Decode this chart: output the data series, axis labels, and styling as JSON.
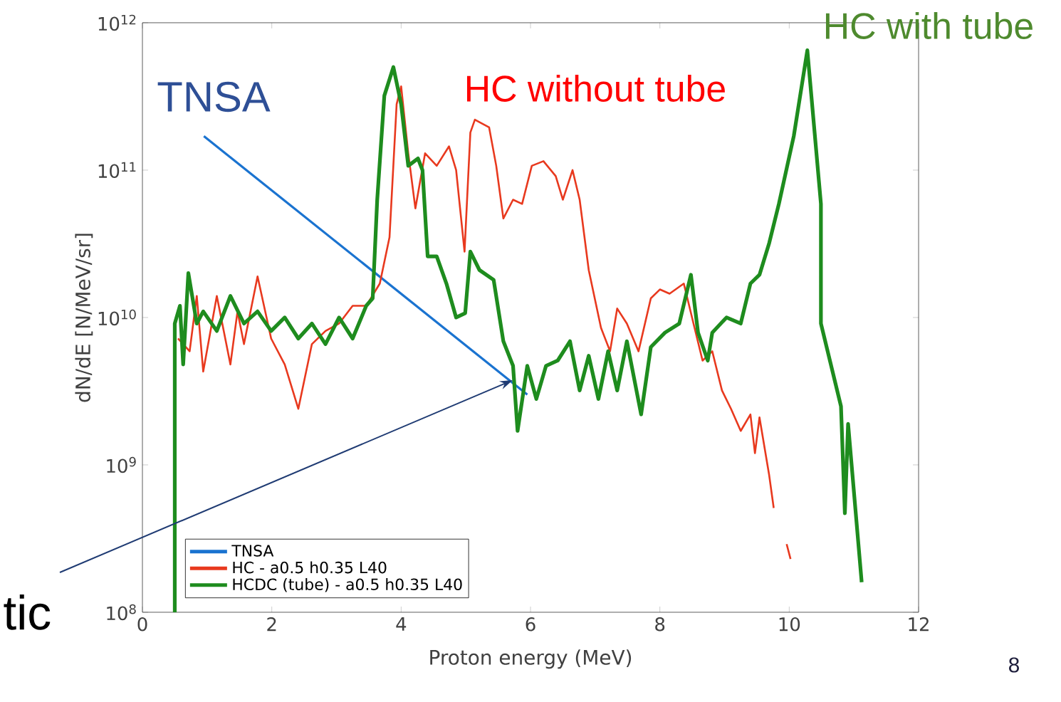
{
  "chart_data": {
    "type": "line",
    "xlabel": "Proton energy (MeV)",
    "ylabel": "dN/dE [N/MeV/sr]",
    "xlim": [
      0,
      12
    ],
    "xticks": [
      0,
      2,
      4,
      6,
      8,
      10,
      12
    ],
    "ylim": [
      100000000.0,
      1000000000000.0
    ],
    "yticks": [
      {
        "value": 100000000.0,
        "label": "10$^{8}$"
      },
      {
        "value": 1000000000.0,
        "label": "10$^{9}$"
      },
      {
        "value": 10000000000.0,
        "label": "10$^{10}$"
      },
      {
        "value": 100000000000.0,
        "label": "10$^{11}$"
      },
      {
        "value": 1000000000000.0,
        "label": "10$^{12}$"
      }
    ],
    "log": "y",
    "grid": false,
    "legend": "bottom left",
    "series": [
      {
        "name": "TNSA",
        "color": "#1a73d0",
        "x": [
          0.95,
          5.95
        ],
        "values": [
          170000000000.0,
          3000000000.0
        ]
      },
      {
        "name": "HC - a0.5 h0.35 L40",
        "color": "#e8391e",
        "x": [
          0.55,
          0.73,
          0.84,
          0.94,
          1.15,
          1.36,
          1.47,
          1.57,
          1.78,
          1.99,
          2.2,
          2.41,
          2.62,
          2.83,
          3.04,
          3.25,
          3.46,
          3.67,
          3.82,
          3.93,
          4.0,
          4.11,
          4.22,
          4.37,
          4.55,
          4.74,
          4.85,
          4.98,
          5.07,
          5.14,
          5.36,
          5.47,
          5.58,
          5.73,
          5.87,
          6.02,
          6.2,
          6.39,
          6.5,
          6.65,
          6.76,
          6.9,
          7.09,
          7.23,
          7.34,
          7.49,
          7.67,
          7.86,
          8.0,
          8.15,
          8.37,
          8.52,
          8.66,
          8.81,
          8.96,
          9.1,
          9.25,
          9.4,
          9.47,
          9.54,
          9.69,
          9.76,
          9.9,
          9.96,
          10.02
        ],
        "values": [
          7200000000.0,
          5900000000.0,
          14000000000.0,
          4300000000.0,
          14000000000.0,
          4800000000.0,
          11000000000.0,
          6600000000.0,
          19000000000.0,
          7200000000.0,
          4800000000.0,
          2400000000.0,
          6600000000.0,
          8100000000.0,
          9100000000.0,
          12000000000.0,
          12000000000.0,
          17000000000.0,
          35000000000.0,
          280000000000.0,
          370000000000.0,
          130000000000.0,
          55000000000.0,
          130000000000.0,
          107000000000.0,
          145000000000.0,
          100000000000.0,
          28000000000.0,
          180000000000.0,
          220000000000.0,
          195000000000.0,
          107000000000.0,
          47000000000.0,
          63000000000.0,
          59000000000.0,
          107000000000.0,
          115000000000.0,
          91000000000.0,
          63000000000.0,
          100000000000.0,
          63000000000.0,
          21000000000.0,
          8500000000.0,
          5900000000.0,
          11500000000.0,
          9100000000.0,
          5900000000.0,
          13500000000.0,
          15500000000.0,
          14500000000.0,
          17000000000.0,
          9100000000.0,
          5100000000.0,
          5900000000.0,
          3200000000.0,
          2400000000.0,
          1700000000.0,
          2200000000.0,
          1200000000.0,
          2100000000.0,
          850000000.0,
          510000000.0,
          null,
          290000000.0,
          230000000.0
        ]
      },
      {
        "name": "HCDC (tube) - a0.5 h0.35 L40",
        "color": "#1e8c1e",
        "x": [
          0.5,
          0.5,
          0.58,
          0.63,
          0.71,
          0.84,
          0.94,
          1.15,
          1.36,
          1.57,
          1.78,
          1.99,
          2.2,
          2.41,
          2.62,
          2.83,
          3.04,
          3.25,
          3.46,
          3.56,
          3.63,
          3.74,
          3.88,
          4.0,
          4.11,
          4.26,
          4.33,
          4.41,
          4.55,
          4.7,
          4.85,
          4.99,
          5.07,
          5.21,
          5.43,
          5.58,
          5.73,
          5.8,
          5.95,
          6.09,
          6.24,
          6.42,
          6.61,
          6.76,
          6.9,
          7.05,
          7.2,
          7.34,
          7.49,
          7.71,
          7.86,
          8.08,
          8.3,
          8.48,
          8.59,
          8.74,
          8.81,
          9.03,
          9.25,
          9.4,
          9.54,
          9.69,
          9.84,
          10.07,
          10.28,
          10.49,
          10.49,
          10.8,
          10.86,
          10.91,
          11.12
        ],
        "values": [
          100000000.0,
          9100000000.0,
          12000000000.0,
          4800000000.0,
          20000000000.0,
          9100000000.0,
          11000000000.0,
          8100000000.0,
          14000000000.0,
          9100000000.0,
          11000000000.0,
          8100000000.0,
          10000000000.0,
          7200000000.0,
          9100000000.0,
          6600000000.0,
          10000000000.0,
          7200000000.0,
          12000000000.0,
          13500000000.0,
          63000000000.0,
          320000000000.0,
          500000000000.0,
          280000000000.0,
          107000000000.0,
          120000000000.0,
          100000000000.0,
          26000000000.0,
          26000000000.0,
          17000000000.0,
          10000000000.0,
          10700000000.0,
          28000000000.0,
          21000000000.0,
          18000000000.0,
          6900000000.0,
          4700000000.0,
          1700000000.0,
          4700000000.0,
          2800000000.0,
          4700000000.0,
          5100000000.0,
          6900000000.0,
          3200000000.0,
          5500000000.0,
          2800000000.0,
          5900000000.0,
          3200000000.0,
          6900000000.0,
          2200000000.0,
          6300000000.0,
          7900000000.0,
          9100000000.0,
          19500000000.0,
          7900000000.0,
          5100000000.0,
          7900000000.0,
          10000000000.0,
          9100000000.0,
          17000000000.0,
          19500000000.0,
          32000000000.0,
          59000000000.0,
          170000000000.0,
          650000000000.0,
          59000000000.0,
          9100000000.0,
          2500000000.0,
          470000000.0,
          1900000000.0,
          160000000.0
        ]
      }
    ],
    "annotations": [
      "TNSA",
      "HC without tube",
      "HC with tube",
      "tic",
      "8"
    ]
  }
}
